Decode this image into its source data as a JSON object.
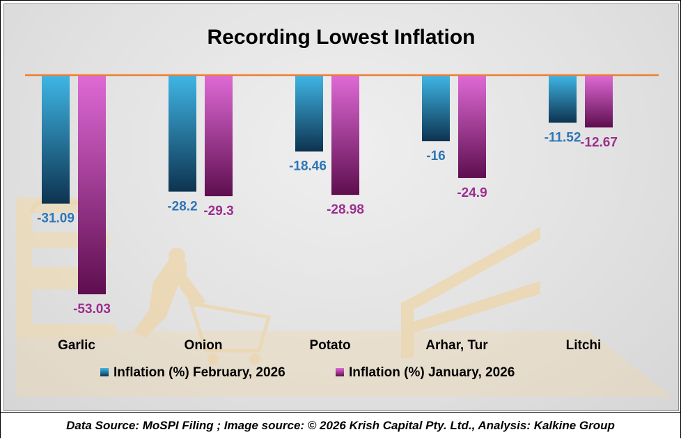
{
  "chart_data": {
    "type": "bar",
    "title": "Recording Lowest Inflation",
    "categories": [
      "Garlic",
      "Onion",
      "Potato",
      "Arhar, Tur",
      "Litchi"
    ],
    "series": [
      {
        "name": "Inflation (%) February, 2026",
        "values": [
          -31.09,
          -28.2,
          -18.46,
          -16,
          -11.52
        ],
        "labels": [
          "-31.09",
          "-28.2",
          "-18.46",
          "-16",
          "-11.52"
        ],
        "color_top": "#3fb6e6",
        "color_bottom": "#0d3350",
        "label_color": "#2e75b6"
      },
      {
        "name": "Inflation (%) January, 2026",
        "values": [
          -53.03,
          -29.3,
          -28.98,
          -24.9,
          -12.67
        ],
        "labels": [
          "-53.03",
          "-29.3",
          "-28.98",
          "-24.9",
          "-12.67"
        ],
        "color_top": "#df6ad6",
        "color_bottom": "#5e0e4f",
        "label_color": "#9b2f8f"
      }
    ],
    "ylim": [
      -53.03,
      0
    ],
    "xlabel": "",
    "ylabel": "",
    "legend": "bottom",
    "grid": false,
    "baseline_color": "#ed7d31"
  },
  "footer": {
    "text": "Data Source: MoSPI Filing ; Image source: © 2026 Krish Capital Pty. Ltd., Analysis: Kalkine Group"
  }
}
